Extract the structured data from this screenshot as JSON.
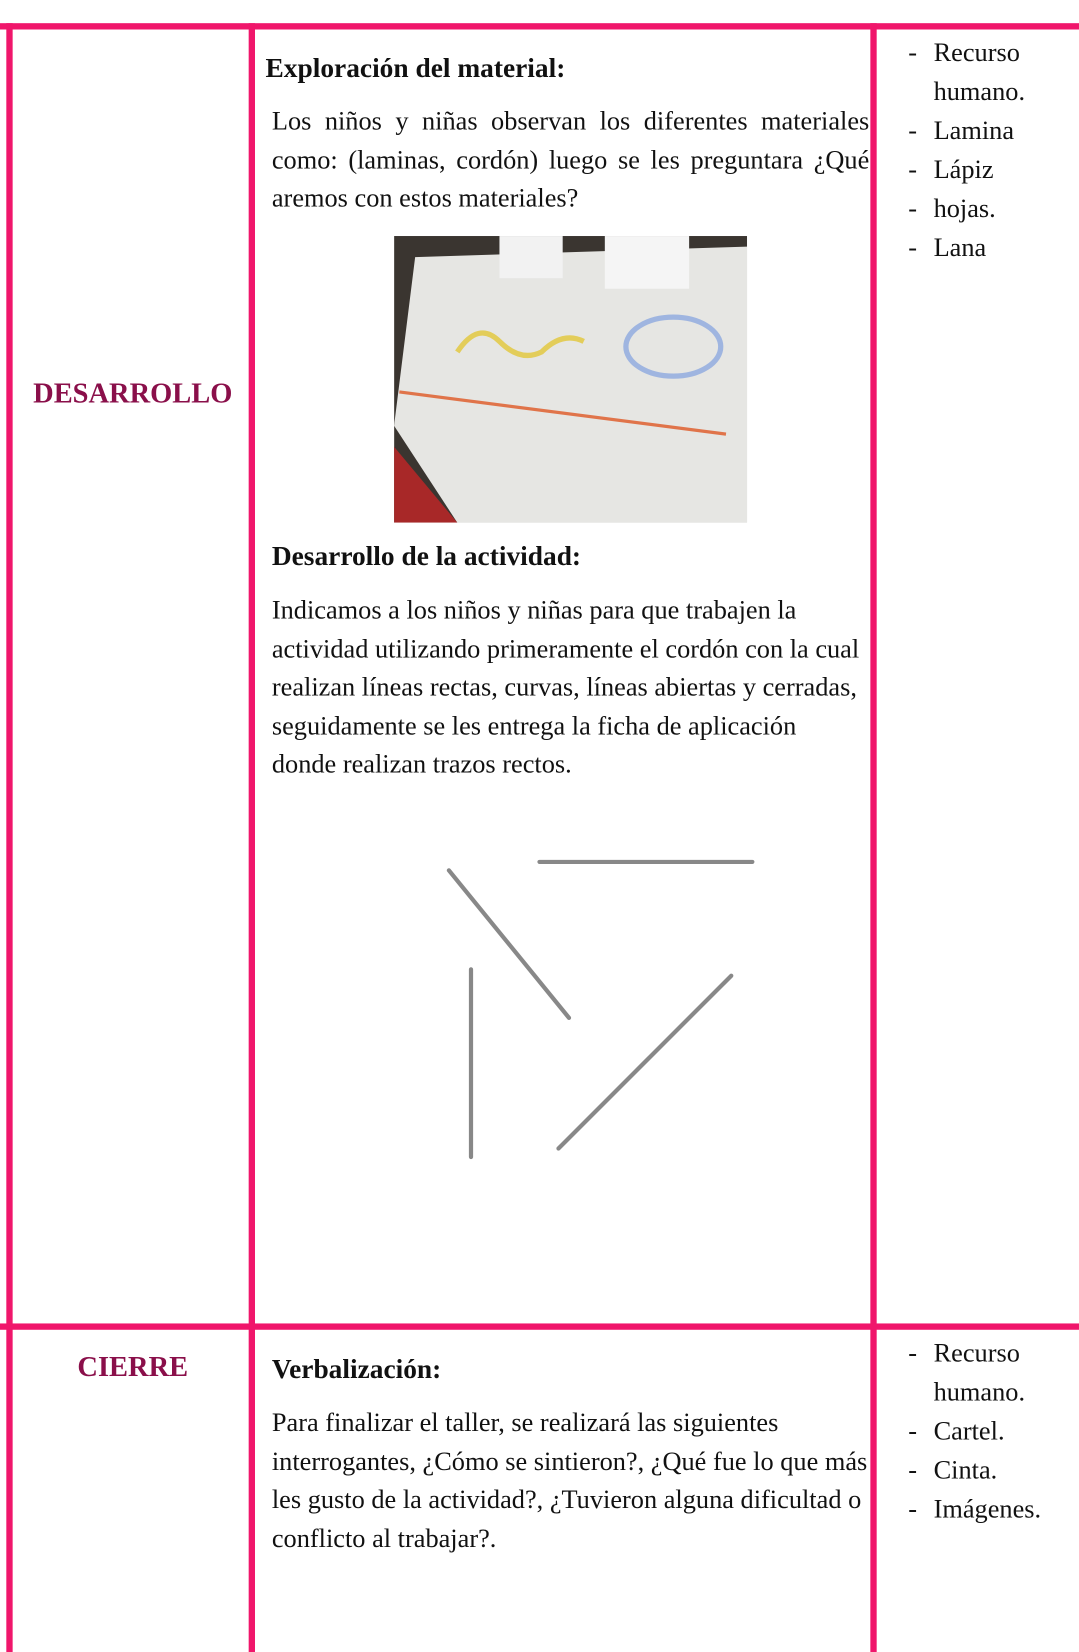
{
  "rows": [
    {
      "stage": "DESARROLLO",
      "sections": [
        {
          "heading": "Exploración del material:",
          "text": "Los niños y niñas observan los diferentes materiales como: (laminas, cordón) luego se les preguntara ¿Qué aremos con estos materiales?"
        },
        {
          "heading": "Desarrollo de la actividad:",
          "text": "Indicamos a los niños y niñas para que trabajen la actividad utilizando primeramente el cordón con la cual realizan líneas rectas, curvas, líneas abiertas y cerradas, seguidamente se les entrega la ficha de aplicación donde realizan trazos rectos."
        }
      ],
      "resources": [
        "Recurso humano.",
        "Lamina",
        "Lápiz",
        "hojas.",
        "Lana"
      ]
    },
    {
      "stage": "CIERRE",
      "sections": [
        {
          "heading": "Verbalización:",
          "text": "Para finalizar el taller, se realizará las siguientes interrogantes, ¿Cómo se sintieron?, ¿Qué fue lo que más les gusto de la actividad?, ¿Tuvieron alguna dificultad o conflicto al trabajar?."
        }
      ],
      "resources": [
        "Recurso humano.",
        "Cartel.",
        "Cinta.",
        "Imágenes."
      ]
    }
  ]
}
